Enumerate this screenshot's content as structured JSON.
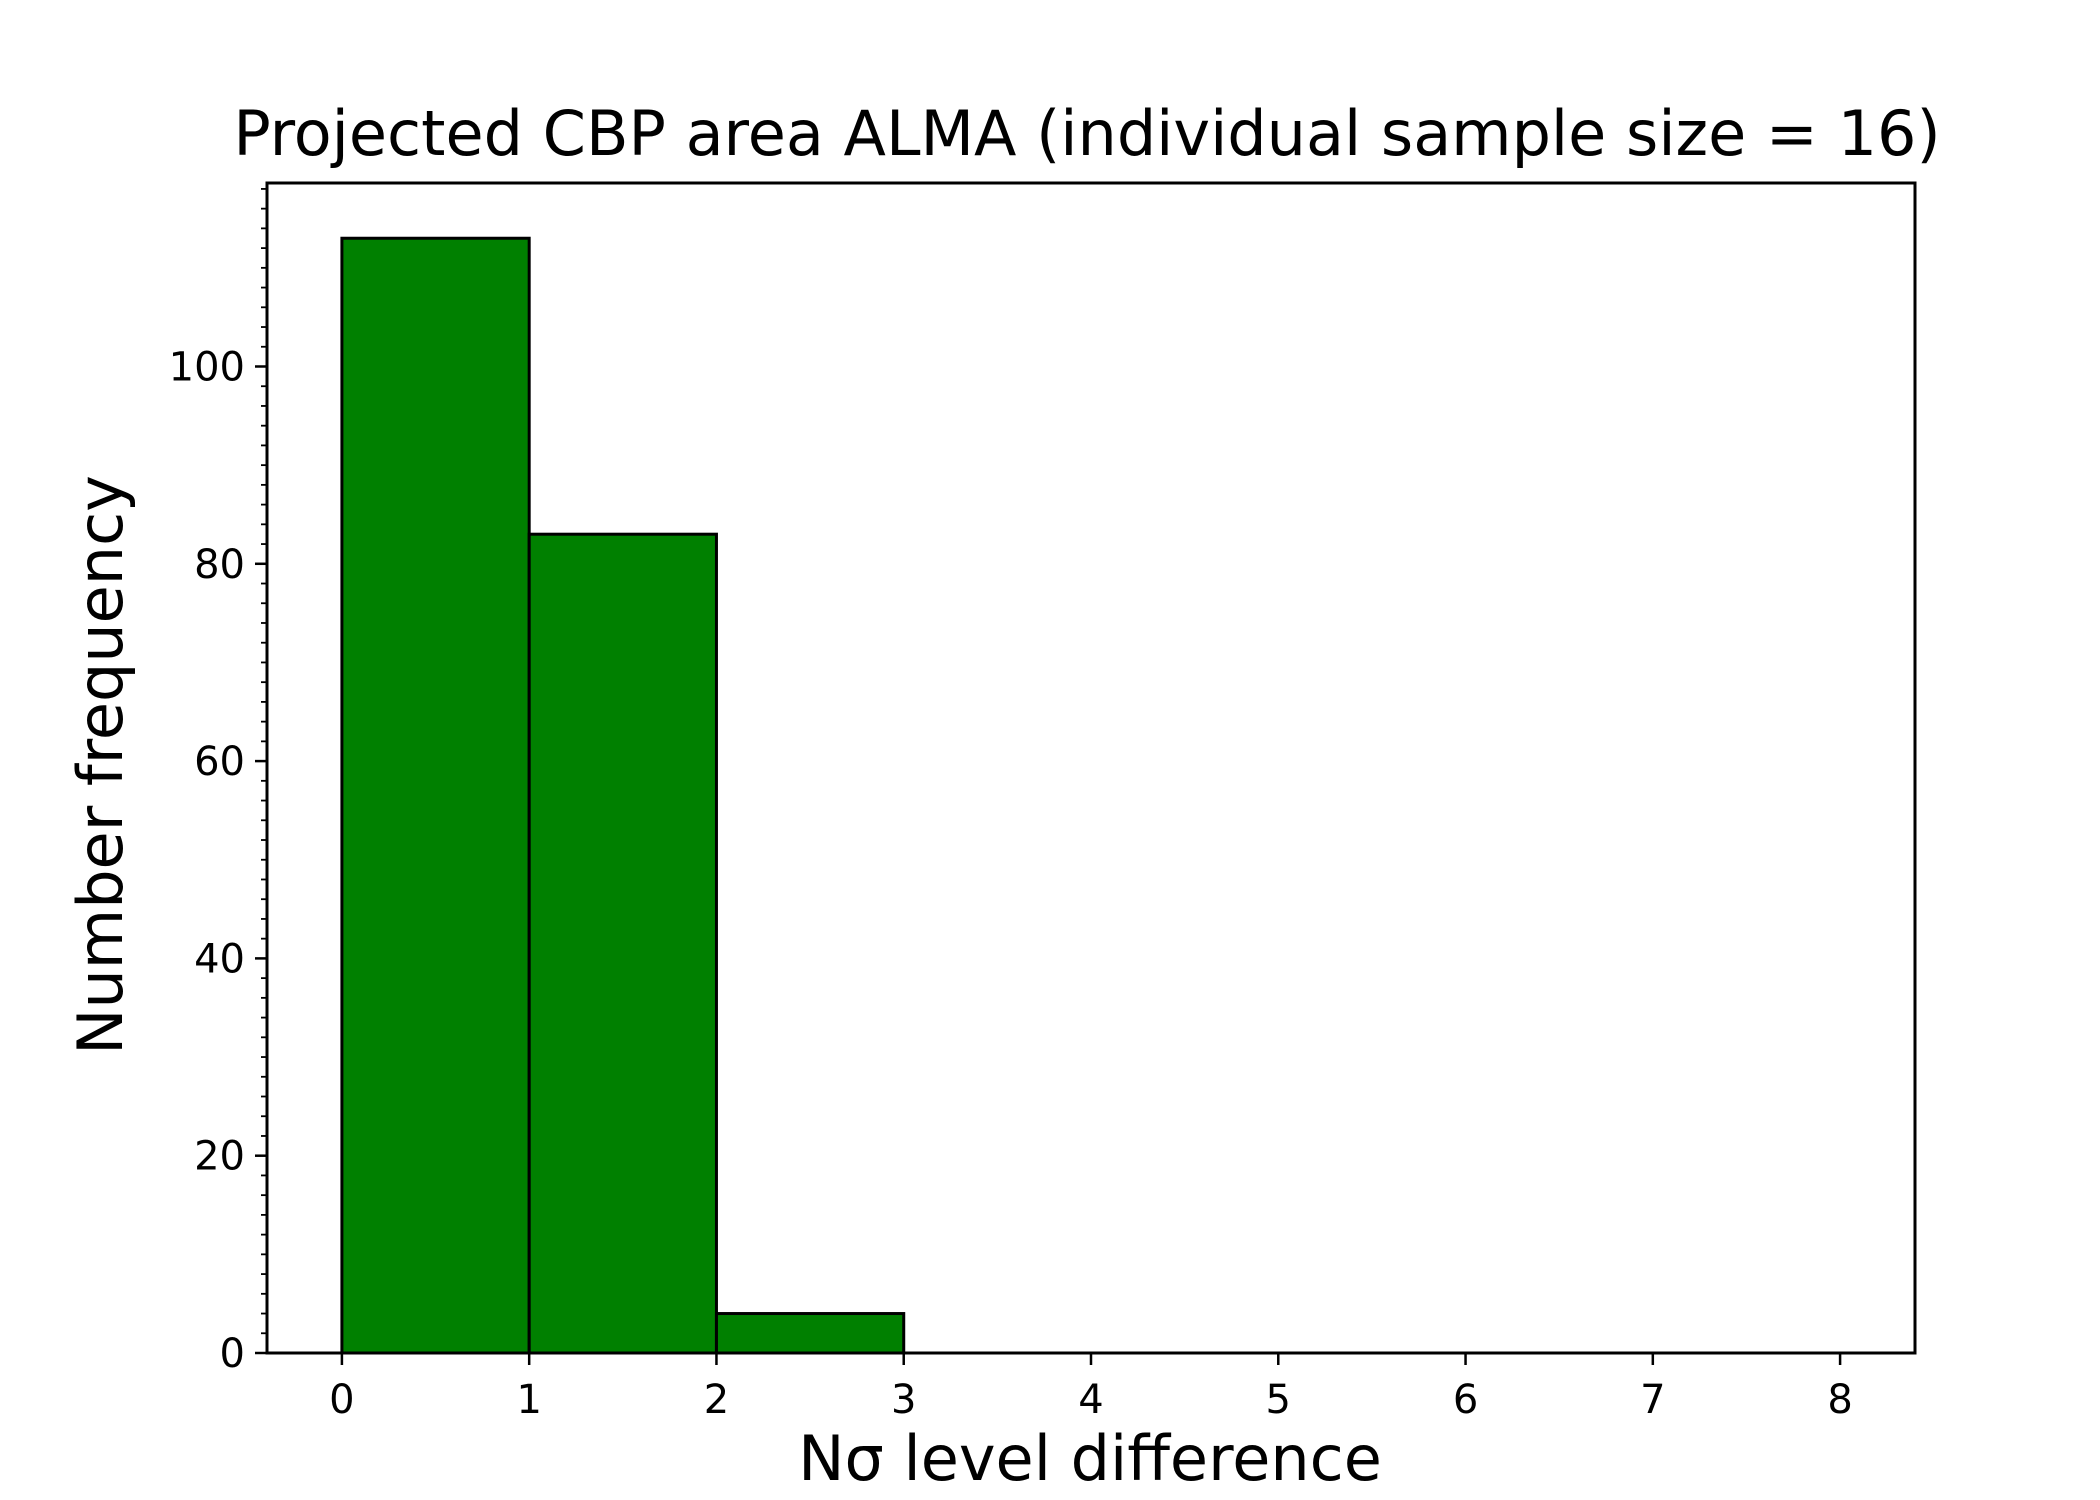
{
  "chart_data": {
    "type": "bar",
    "title": "Projected CBP area ALMA (individual sample size = 16)",
    "xlabel": "Nσ level difference",
    "ylabel": "Number frequency",
    "bin_edges": [
      0,
      1,
      2,
      3,
      4,
      5,
      6,
      7,
      8
    ],
    "values": [
      113,
      83,
      4,
      0,
      0,
      0,
      0,
      0
    ],
    "xlim": [
      -0.4,
      8.4
    ],
    "ylim": [
      0,
      118.6
    ],
    "xticks": [
      0,
      1,
      2,
      3,
      4,
      5,
      6,
      7,
      8
    ],
    "yticks": [
      0,
      20,
      40,
      60,
      80,
      100
    ],
    "y_minor_tick_step": 2,
    "grid": false,
    "legend": "none",
    "colors": {
      "bar_fill": "#008000",
      "bar_edge": "#000000",
      "axes": "#000000",
      "background": "#ffffff"
    }
  }
}
